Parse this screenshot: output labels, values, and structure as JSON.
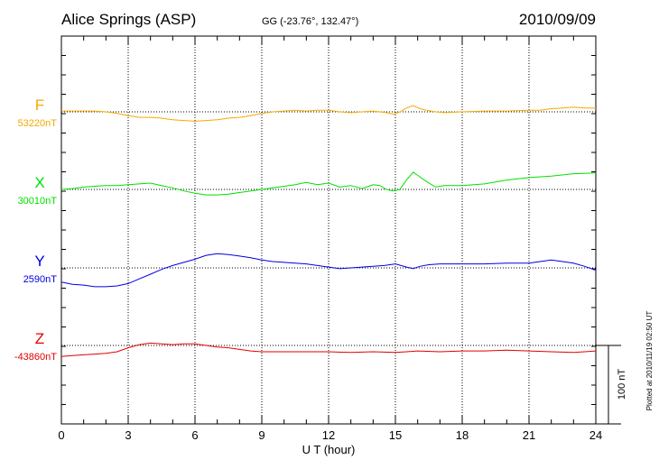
{
  "header": {
    "station": "Alice Springs (ASP)",
    "coords": "GG (-23.76°, 132.47°)",
    "date": "2010/09/09"
  },
  "side_note": "Plotted at 2010/11/19 02:50 UT",
  "scale_bar": {
    "label": "100 nT",
    "value_nT": 100
  },
  "chart_data": {
    "type": "line",
    "title": "Alice Springs (ASP)",
    "xlabel": "U T (hour)",
    "xlim": [
      0,
      24
    ],
    "x_ticks": [
      0,
      3,
      6,
      9,
      12,
      15,
      18,
      21,
      24
    ],
    "grid": true,
    "series": [
      {
        "name": "F",
        "baseline_label": "53220nT",
        "baseline_nT": 53220,
        "color": "#f5a800",
        "points": [
          [
            0,
            1
          ],
          [
            0.5,
            1
          ],
          [
            1,
            1
          ],
          [
            1.5,
            1
          ],
          [
            2,
            0
          ],
          [
            2.5,
            -2
          ],
          [
            3,
            -5
          ],
          [
            3.5,
            -7
          ],
          [
            4,
            -7
          ],
          [
            4.5,
            -8
          ],
          [
            5,
            -10
          ],
          [
            5.5,
            -11
          ],
          [
            6,
            -12
          ],
          [
            6.5,
            -11
          ],
          [
            7,
            -10
          ],
          [
            7.5,
            -8
          ],
          [
            8,
            -7
          ],
          [
            8.5,
            -5
          ],
          [
            9,
            -2
          ],
          [
            9.5,
            0
          ],
          [
            10,
            1
          ],
          [
            10.5,
            2
          ],
          [
            11,
            1
          ],
          [
            11.5,
            2
          ],
          [
            12,
            2
          ],
          [
            12.5,
            0
          ],
          [
            13,
            -1
          ],
          [
            13.5,
            0
          ],
          [
            14,
            1
          ],
          [
            14.3,
            0
          ],
          [
            14.6,
            -1
          ],
          [
            14.9,
            -3
          ],
          [
            15.2,
            0
          ],
          [
            15.5,
            5
          ],
          [
            15.8,
            8
          ],
          [
            16.1,
            4
          ],
          [
            16.4,
            2
          ],
          [
            16.8,
            0
          ],
          [
            17.2,
            -1
          ],
          [
            18,
            0
          ],
          [
            19,
            1
          ],
          [
            20,
            1
          ],
          [
            21,
            2
          ],
          [
            21.5,
            2
          ],
          [
            22,
            4
          ],
          [
            22.5,
            5
          ],
          [
            23,
            6
          ],
          [
            23.5,
            5
          ],
          [
            24,
            5
          ]
        ]
      },
      {
        "name": "X",
        "baseline_label": "30010nT",
        "baseline_nT": 30010,
        "color": "#00e000",
        "points": [
          [
            0,
            0
          ],
          [
            0.5,
            1
          ],
          [
            1,
            3
          ],
          [
            1.5,
            4
          ],
          [
            2,
            5
          ],
          [
            2.5,
            5
          ],
          [
            3,
            6
          ],
          [
            3.5,
            7
          ],
          [
            4,
            8
          ],
          [
            4.5,
            5
          ],
          [
            5,
            2
          ],
          [
            5.5,
            -2
          ],
          [
            6,
            -5
          ],
          [
            6.5,
            -7
          ],
          [
            7,
            -7
          ],
          [
            7.5,
            -6
          ],
          [
            8,
            -4
          ],
          [
            8.5,
            -2
          ],
          [
            9,
            0
          ],
          [
            9.5,
            2
          ],
          [
            10,
            4
          ],
          [
            10.5,
            6
          ],
          [
            11,
            9
          ],
          [
            11.5,
            6
          ],
          [
            12,
            8
          ],
          [
            12.5,
            3
          ],
          [
            13,
            5
          ],
          [
            13.5,
            1
          ],
          [
            14,
            6
          ],
          [
            14.3,
            5
          ],
          [
            14.6,
            0
          ],
          [
            14.9,
            -2
          ],
          [
            15.2,
            0
          ],
          [
            15.5,
            12
          ],
          [
            15.8,
            22
          ],
          [
            16.1,
            16
          ],
          [
            16.4,
            10
          ],
          [
            16.8,
            3
          ],
          [
            17.2,
            5
          ],
          [
            18,
            5
          ],
          [
            19,
            7
          ],
          [
            20,
            12
          ],
          [
            21,
            15
          ],
          [
            22,
            17
          ],
          [
            23,
            20
          ],
          [
            24,
            21
          ]
        ]
      },
      {
        "name": "Y",
        "baseline_label": "2590nT",
        "baseline_nT": 2590,
        "color": "#0000e0",
        "points": [
          [
            0,
            -18
          ],
          [
            0.5,
            -21
          ],
          [
            1,
            -22
          ],
          [
            1.5,
            -24
          ],
          [
            2,
            -24
          ],
          [
            2.5,
            -23
          ],
          [
            3,
            -20
          ],
          [
            3.5,
            -14
          ],
          [
            4,
            -8
          ],
          [
            4.5,
            -2
          ],
          [
            5,
            3
          ],
          [
            5.5,
            7
          ],
          [
            6,
            11
          ],
          [
            6.5,
            16
          ],
          [
            7,
            18
          ],
          [
            7.5,
            17
          ],
          [
            8,
            15
          ],
          [
            8.5,
            13
          ],
          [
            9,
            10
          ],
          [
            9.5,
            8
          ],
          [
            10,
            7
          ],
          [
            10.5,
            6
          ],
          [
            11,
            5
          ],
          [
            11.5,
            3
          ],
          [
            12,
            1
          ],
          [
            12.5,
            -1
          ],
          [
            13,
            0
          ],
          [
            13.5,
            1
          ],
          [
            14,
            2
          ],
          [
            14.5,
            3
          ],
          [
            15,
            5
          ],
          [
            15.5,
            1
          ],
          [
            15.8,
            -1
          ],
          [
            16.1,
            2
          ],
          [
            16.5,
            4
          ],
          [
            17,
            5
          ],
          [
            18,
            5
          ],
          [
            19,
            5
          ],
          [
            20,
            6
          ],
          [
            21,
            6
          ],
          [
            21.5,
            8
          ],
          [
            22,
            10
          ],
          [
            22.5,
            8
          ],
          [
            23,
            6
          ],
          [
            23.5,
            2
          ],
          [
            24,
            -3
          ]
        ]
      },
      {
        "name": "Z",
        "baseline_label": "-43860nT",
        "baseline_nT": -43860,
        "color": "#e00000",
        "points": [
          [
            0,
            -14
          ],
          [
            0.5,
            -13
          ],
          [
            1,
            -12
          ],
          [
            1.5,
            -11
          ],
          [
            2,
            -10
          ],
          [
            2.5,
            -8
          ],
          [
            3,
            -3
          ],
          [
            3.5,
            1
          ],
          [
            4,
            3
          ],
          [
            4.5,
            2
          ],
          [
            5,
            1
          ],
          [
            5.5,
            2
          ],
          [
            6,
            2
          ],
          [
            6.5,
            0
          ],
          [
            7,
            -2
          ],
          [
            7.5,
            -3
          ],
          [
            8,
            -5
          ],
          [
            8.5,
            -7
          ],
          [
            9,
            -8
          ],
          [
            9.5,
            -8
          ],
          [
            10,
            -8
          ],
          [
            11,
            -8
          ],
          [
            12,
            -8
          ],
          [
            13,
            -9
          ],
          [
            14,
            -8
          ],
          [
            15,
            -9
          ],
          [
            15.5,
            -8
          ],
          [
            16,
            -7
          ],
          [
            17,
            -8
          ],
          [
            18,
            -7
          ],
          [
            19,
            -7
          ],
          [
            20,
            -6
          ],
          [
            21,
            -7
          ],
          [
            22,
            -8
          ],
          [
            23,
            -9
          ],
          [
            23.5,
            -8
          ],
          [
            24,
            -7
          ]
        ]
      }
    ]
  }
}
